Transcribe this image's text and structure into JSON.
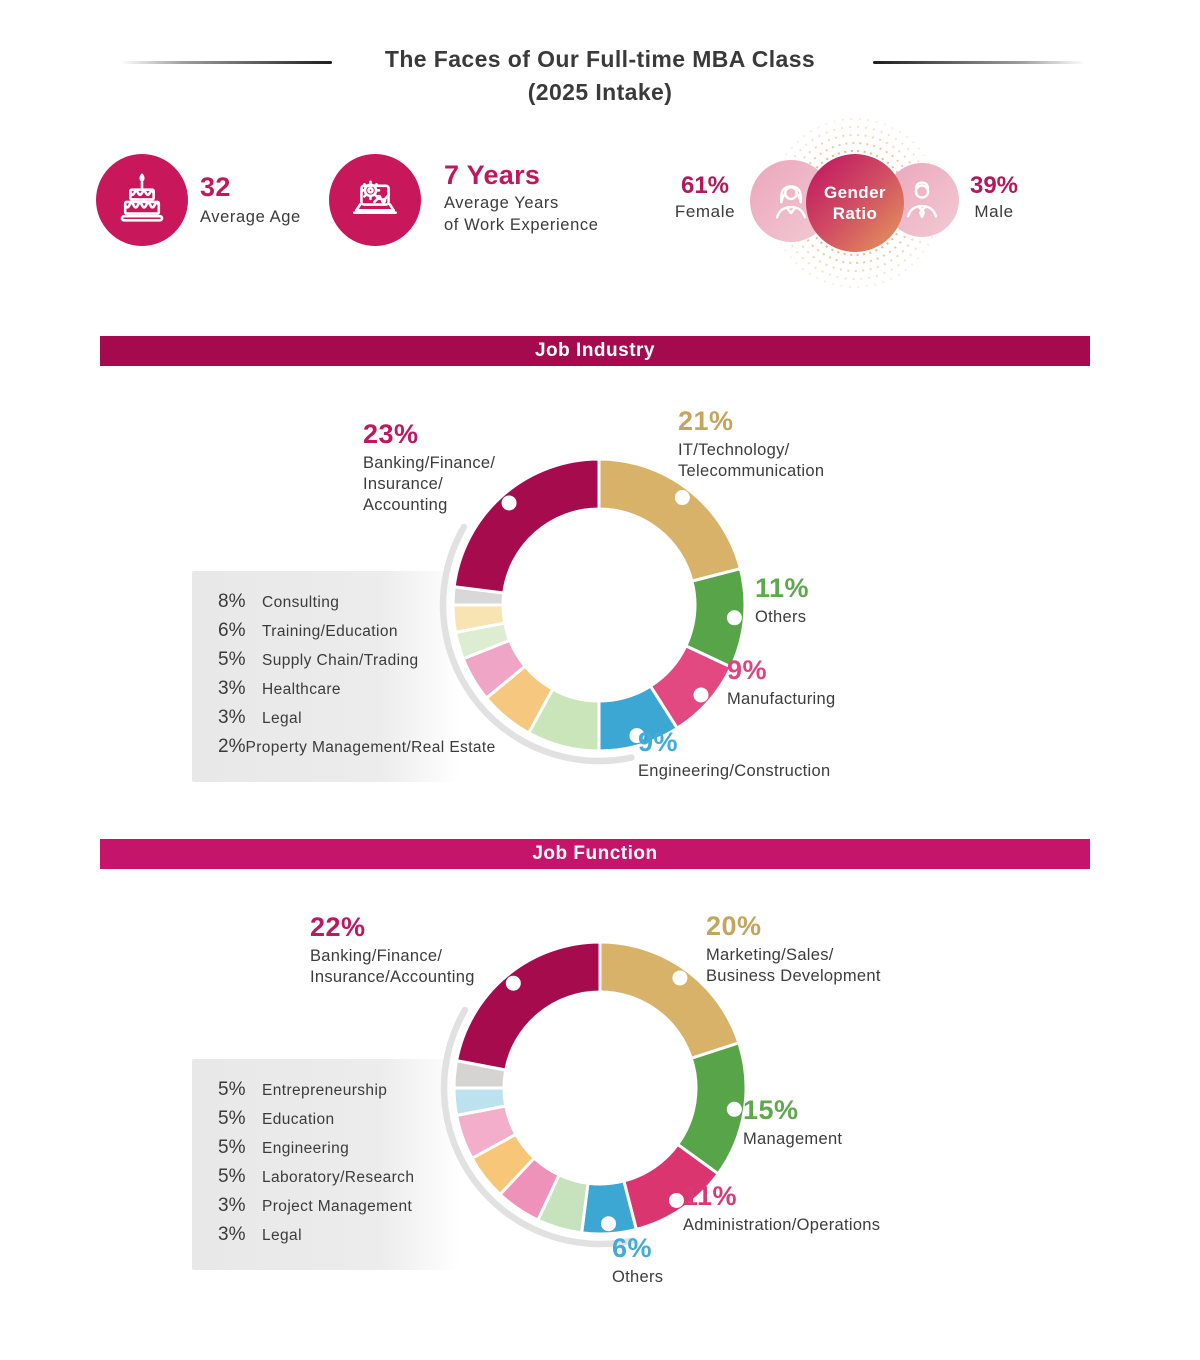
{
  "header": {
    "title_line1": "The Faces of Our Full-time MBA Class",
    "title_line2": "(2025 Intake)"
  },
  "stats": {
    "age": {
      "value": "32",
      "label": "Average Age",
      "icon": "birthday-cake-icon"
    },
    "experience": {
      "value": "7 Years",
      "label_line1": "Average Years",
      "label_line2": "of Work Experience",
      "icon": "laptop-gear-icon"
    },
    "gender": {
      "badge_line1": "Gender",
      "badge_line2": "Ratio",
      "female_pct": "61%",
      "female_label": "Female",
      "male_pct": "39%",
      "male_label": "Male"
    }
  },
  "colors": {
    "crimson": "#a60b4e",
    "bright_pink": "#c4156b",
    "accent_text": "#c2185b",
    "stat_circle": "#c9175b",
    "banner_industry": "#a40a4d",
    "banner_function": "#c4156b"
  },
  "chart_data": [
    {
      "type": "donut",
      "title": "Job Industry",
      "start_angle_deg": 0,
      "direction": "clockwise",
      "segments": [
        {
          "label": "IT/Technology/Telecommunication",
          "value": 21,
          "pct": "21%",
          "color": "#d9b269",
          "text_color": "#c5a45c",
          "display": "callout",
          "label_lines": [
            "IT/Technology/",
            "Telecommunication"
          ]
        },
        {
          "label": "Others",
          "value": 11,
          "pct": "11%",
          "color": "#57a548",
          "text_color": "#5ea94d",
          "display": "callout",
          "label_lines": [
            "Others"
          ]
        },
        {
          "label": "Manufacturing",
          "value": 9,
          "pct": "9%",
          "color": "#e24980",
          "text_color": "#e24380",
          "display": "callout",
          "label_lines": [
            "Manufacturing"
          ]
        },
        {
          "label": "Engineering/Construction",
          "value": 9,
          "pct": "9%",
          "color": "#3ca7d3",
          "text_color": "#42abd8",
          "display": "callout",
          "label_lines": [
            "Engineering/Construction"
          ]
        },
        {
          "label": "Consulting",
          "value": 8,
          "pct": "8%",
          "color": "#cbe5bb",
          "display": "legend"
        },
        {
          "label": "Training/Education",
          "value": 6,
          "pct": "6%",
          "color": "#f6c77f",
          "display": "legend"
        },
        {
          "label": "Supply Chain/Trading",
          "value": 5,
          "pct": "5%",
          "color": "#efa6c6",
          "display": "legend"
        },
        {
          "label": "Healthcare",
          "value": 3,
          "pct": "3%",
          "color": "#ddedd2",
          "display": "legend"
        },
        {
          "label": "Legal",
          "value": 3,
          "pct": "3%",
          "color": "#f8e3b2",
          "display": "legend"
        },
        {
          "label": "Property Management/Real Estate",
          "value": 2,
          "pct": "2%",
          "color": "#d8d8d8",
          "display": "legend"
        },
        {
          "label": "Banking/Finance/Insurance/Accounting",
          "value": 23,
          "pct": "23%",
          "color": "#a60b4e",
          "text_color": "#be1862",
          "display": "callout",
          "label_lines": [
            "Banking/Finance/",
            "Insurance/",
            "Accounting"
          ]
        }
      ]
    },
    {
      "type": "donut",
      "title": "Job Function",
      "start_angle_deg": 0,
      "direction": "clockwise",
      "segments": [
        {
          "label": "Marketing/Sales/Business Development",
          "value": 20,
          "pct": "20%",
          "color": "#d9b269",
          "text_color": "#c5a45c",
          "display": "callout",
          "label_lines": [
            "Marketing/Sales/",
            "Business Development"
          ]
        },
        {
          "label": "Management",
          "value": 15,
          "pct": "15%",
          "color": "#57a548",
          "text_color": "#5ea94d",
          "display": "callout",
          "label_lines": [
            "Management"
          ]
        },
        {
          "label": "Administration/Operations",
          "value": 11,
          "pct": "11%",
          "color": "#db356f",
          "text_color": "#d93a75",
          "display": "callout",
          "label_lines": [
            "Administration/Operations"
          ]
        },
        {
          "label": "Others",
          "value": 6,
          "pct": "6%",
          "color": "#3ca7d3",
          "text_color": "#42abd8",
          "display": "callout",
          "label_lines": [
            "Others"
          ]
        },
        {
          "label": "Entrepreneurship",
          "value": 5,
          "pct": "5%",
          "color": "#c6e3be",
          "display": "legend"
        },
        {
          "label": "Education",
          "value": 5,
          "pct": "5%",
          "color": "#ef92b9",
          "display": "legend"
        },
        {
          "label": "Engineering",
          "value": 5,
          "pct": "5%",
          "color": "#f8c678",
          "display": "legend"
        },
        {
          "label": "Laboratory/Research",
          "value": 5,
          "pct": "5%",
          "color": "#f2aecb",
          "display": "legend"
        },
        {
          "label": "Project Management",
          "value": 3,
          "pct": "3%",
          "color": "#bce2f0",
          "display": "legend"
        },
        {
          "label": "Legal",
          "value": 3,
          "pct": "3%",
          "color": "#d6d4d2",
          "display": "legend"
        },
        {
          "label": "Banking/Finance/Insurance/Accounting",
          "value": 22,
          "pct": "22%",
          "color": "#a60b4e",
          "text_color": "#be1862",
          "display": "callout",
          "label_lines": [
            "Banking/Finance/",
            "Insurance/Accounting"
          ]
        }
      ]
    }
  ]
}
